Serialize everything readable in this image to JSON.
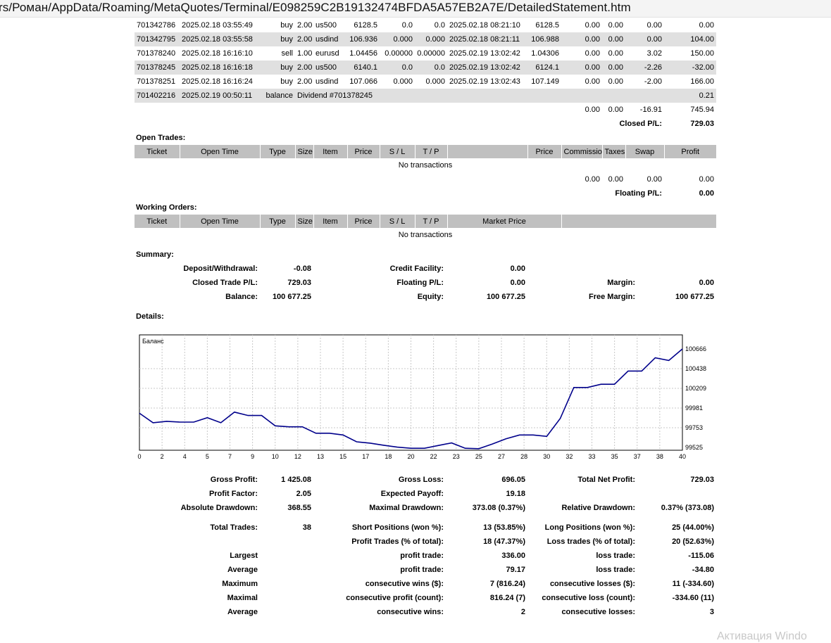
{
  "browser": {
    "url": "rs/Роман/AppData/Roaming/MetaQuotes/Terminal/E098259C2B19132474BFDA5A57EB2A7E/DetailedStatement.htm"
  },
  "closed_trades": {
    "rows": [
      {
        "ticket": "701342786",
        "open_time": "2025.02.18 03:55:49",
        "type": "buy",
        "size": "2.00",
        "item": "us500",
        "price": "6128.5",
        "sl": "0.0",
        "tp": "0.0",
        "close_time": "2025.02.18 08:21:10",
        "close_price": "6128.5",
        "commission": "0.00",
        "taxes": "0.00",
        "swap": "0.00",
        "profit": "0.00"
      },
      {
        "ticket": "701342795",
        "open_time": "2025.02.18 03:55:58",
        "type": "buy",
        "size": "2.00",
        "item": "usdind",
        "price": "106.936",
        "sl": "0.000",
        "tp": "0.000",
        "close_time": "2025.02.18 08:21:11",
        "close_price": "106.988",
        "commission": "0.00",
        "taxes": "0.00",
        "swap": "0.00",
        "profit": "104.00"
      },
      {
        "ticket": "701378240",
        "open_time": "2025.02.18 16:16:10",
        "type": "sell",
        "size": "1.00",
        "item": "eurusd",
        "price": "1.04456",
        "sl": "0.00000",
        "tp": "0.00000",
        "close_time": "2025.02.19 13:02:42",
        "close_price": "1.04306",
        "commission": "0.00",
        "taxes": "0.00",
        "swap": "3.02",
        "profit": "150.00"
      },
      {
        "ticket": "701378245",
        "open_time": "2025.02.18 16:16:18",
        "type": "buy",
        "size": "2.00",
        "item": "us500",
        "price": "6140.1",
        "sl": "0.0",
        "tp": "0.0",
        "close_time": "2025.02.19 13:02:42",
        "close_price": "6124.1",
        "commission": "0.00",
        "taxes": "0.00",
        "swap": "-2.26",
        "profit": "-32.00"
      },
      {
        "ticket": "701378251",
        "open_time": "2025.02.18 16:16:24",
        "type": "buy",
        "size": "2.00",
        "item": "usdind",
        "price": "107.066",
        "sl": "0.000",
        "tp": "0.000",
        "close_time": "2025.02.19 13:02:43",
        "close_price": "107.149",
        "commission": "0.00",
        "taxes": "0.00",
        "swap": "-2.00",
        "profit": "166.00"
      }
    ],
    "balance_row": {
      "ticket": "701402216",
      "time": "2025.02.19 00:50:11",
      "type": "balance",
      "comment": "Dividend #701378245",
      "profit": "0.21"
    },
    "totals": {
      "commission": "0.00",
      "taxes": "0.00",
      "swap": "-16.91",
      "profit": "745.94"
    },
    "closed_pl_label": "Closed P/L:",
    "closed_pl": "729.03"
  },
  "open_trades": {
    "title": "Open Trades:",
    "headers": [
      "Ticket",
      "Open Time",
      "Type",
      "Size",
      "Item",
      "Price",
      "S / L",
      "T / P",
      "",
      "Price",
      "Commission",
      "Taxes",
      "Swap",
      "Profit"
    ],
    "empty": "No transactions",
    "totals": {
      "commission": "0.00",
      "taxes": "0.00",
      "swap": "0.00",
      "profit": "0.00"
    },
    "floating_label": "Floating P/L:",
    "floating": "0.00"
  },
  "working_orders": {
    "title": "Working Orders:",
    "headers": [
      "Ticket",
      "Open Time",
      "Type",
      "Size",
      "Item",
      "Price",
      "S / L",
      "T / P",
      "Market Price",
      ""
    ],
    "empty": "No transactions"
  },
  "summary": {
    "title": "Summary:",
    "deposit_label": "Deposit/Withdrawal:",
    "deposit": "-0.08",
    "credit_label": "Credit Facility:",
    "credit": "0.00",
    "closed_label": "Closed Trade P/L:",
    "closed": "729.03",
    "floating_label": "Floating P/L:",
    "floating": "0.00",
    "margin_label": "Margin:",
    "margin": "0.00",
    "balance_label": "Balance:",
    "balance": "100 677.25",
    "equity_label": "Equity:",
    "equity": "100 677.25",
    "free_margin_label": "Free Margin:",
    "free_margin": "100 677.25"
  },
  "details_title": "Details:",
  "chart_data": {
    "type": "line",
    "title": "Баланс",
    "x_ticks": [
      "0",
      "2",
      "4",
      "5",
      "7",
      "9",
      "10",
      "12",
      "13",
      "15",
      "17",
      "18",
      "20",
      "22",
      "23",
      "25",
      "27",
      "28",
      "30",
      "32",
      "33",
      "35",
      "37",
      "38",
      "40"
    ],
    "y_ticks": [
      "100666",
      "100438",
      "100209",
      "99981",
      "99753",
      "99525"
    ],
    "ylim": [
      99525,
      100666
    ],
    "xlim": [
      0,
      40
    ],
    "x": [
      0,
      1,
      2,
      3,
      4,
      5,
      6,
      7,
      8,
      9,
      10,
      11,
      12,
      13,
      14,
      15,
      16,
      17,
      18,
      19,
      20,
      21,
      22,
      23,
      24,
      25,
      26,
      27,
      28,
      29,
      30,
      31,
      32,
      33,
      34,
      35,
      36,
      37,
      38,
      39,
      40
    ],
    "values": [
      99921,
      99811,
      99827,
      99818,
      99818,
      99870,
      99811,
      99934,
      99895,
      99895,
      99775,
      99764,
      99764,
      99690,
      99690,
      99669,
      99590,
      99575,
      99550,
      99528,
      99515,
      99515,
      99547,
      99577,
      99515,
      99510,
      99565,
      99625,
      99669,
      99669,
      99653,
      99860,
      100219,
      100219,
      100257,
      100257,
      100410,
      100410,
      100563,
      100532,
      100666
    ],
    "grid": true,
    "color": "#00008b"
  },
  "stats": {
    "gross_profit_label": "Gross Profit:",
    "gross_profit": "1 425.08",
    "gross_loss_label": "Gross Loss:",
    "gross_loss": "696.05",
    "total_net_label": "Total Net Profit:",
    "total_net": "729.03",
    "profit_factor_label": "Profit Factor:",
    "profit_factor": "2.05",
    "expected_payoff_label": "Expected Payoff:",
    "expected_payoff": "19.18",
    "abs_dd_label": "Absolute Drawdown:",
    "abs_dd": "368.55",
    "max_dd_label": "Maximal Drawdown:",
    "max_dd": "373.08 (0.37%)",
    "rel_dd_label": "Relative Drawdown:",
    "rel_dd": "0.37% (373.08)",
    "total_trades_label": "Total Trades:",
    "total_trades": "38",
    "short_label": "Short Positions (won %):",
    "short": "13 (53.85%)",
    "long_label": "Long Positions (won %):",
    "long": "25 (44.00%)",
    "profit_trades_label": "Profit Trades (% of total):",
    "profit_trades": "18 (47.37%)",
    "loss_trades_label": "Loss trades (% of total):",
    "loss_trades": "20 (52.63%)",
    "largest": "Largest",
    "largest_profit_label": "profit trade:",
    "largest_profit": "336.00",
    "largest_loss_label": "loss trade:",
    "largest_loss": "-115.06",
    "average": "Average",
    "avg_profit_label": "profit trade:",
    "avg_profit": "79.17",
    "avg_loss_label": "loss trade:",
    "avg_loss": "-34.80",
    "maximum": "Maximum",
    "max_cw_label": "consecutive wins ($):",
    "max_cw": "7 (816.24)",
    "max_cl_label": "consecutive losses ($):",
    "max_cl": "11 (-334.60)",
    "maximal": "Maximal",
    "mx_cp_label": "consecutive profit (count):",
    "mx_cp": "816.24 (7)",
    "mx_cl_label": "consecutive loss (count):",
    "mx_cl": "-334.60 (11)",
    "average2": "Average",
    "avg_cw_label": "consecutive wins:",
    "avg_cw": "2",
    "avg_cl_label": "consecutive losses:",
    "avg_cl": "3"
  },
  "watermark": "Активация Windo"
}
